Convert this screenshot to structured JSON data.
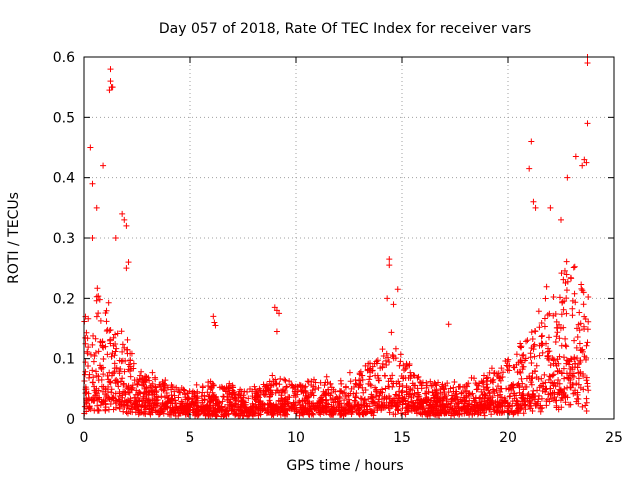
{
  "chart_data": {
    "type": "scatter",
    "title": "Day 057 of 2018, Rate Of TEC Index for receiver vars",
    "xlabel": "GPS time / hours",
    "ylabel": "ROTI / TECUs",
    "xlim": [
      0,
      25
    ],
    "ylim": [
      0,
      0.6
    ],
    "xticks": [
      0,
      5,
      10,
      15,
      20,
      25
    ],
    "xtick_labels": [
      "0",
      "5",
      "10",
      "15",
      "20",
      "25"
    ],
    "yticks": [
      0,
      0.1,
      0.2,
      0.3,
      0.4,
      0.5,
      0.6
    ],
    "ytick_labels": [
      "0",
      "0.1",
      "0.2",
      "0.3",
      "0.4",
      "0.5",
      "0.6"
    ],
    "grid": true,
    "marker": "+",
    "color": "#ff0000",
    "series": [
      {
        "name": "ROTI",
        "envelope": [
          {
            "t": 0.0,
            "base": 0.025,
            "spread": 0.16
          },
          {
            "t": 0.5,
            "base": 0.03,
            "spread": 0.2
          },
          {
            "t": 1.0,
            "base": 0.03,
            "spread": 0.18
          },
          {
            "t": 1.5,
            "base": 0.03,
            "spread": 0.14
          },
          {
            "t": 2.0,
            "base": 0.025,
            "spread": 0.12
          },
          {
            "t": 2.5,
            "base": 0.02,
            "spread": 0.07
          },
          {
            "t": 3.0,
            "base": 0.02,
            "spread": 0.06
          },
          {
            "t": 4.0,
            "base": 0.015,
            "spread": 0.045
          },
          {
            "t": 5.0,
            "base": 0.012,
            "spread": 0.04
          },
          {
            "t": 6.0,
            "base": 0.012,
            "spread": 0.05
          },
          {
            "t": 7.0,
            "base": 0.012,
            "spread": 0.045
          },
          {
            "t": 8.0,
            "base": 0.012,
            "spread": 0.045
          },
          {
            "t": 9.0,
            "base": 0.015,
            "spread": 0.06
          },
          {
            "t": 10.0,
            "base": 0.015,
            "spread": 0.05
          },
          {
            "t": 11.0,
            "base": 0.015,
            "spread": 0.05
          },
          {
            "t": 12.0,
            "base": 0.015,
            "spread": 0.055
          },
          {
            "t": 13.0,
            "base": 0.018,
            "spread": 0.06
          },
          {
            "t": 14.0,
            "base": 0.02,
            "spread": 0.1
          },
          {
            "t": 14.5,
            "base": 0.022,
            "spread": 0.12
          },
          {
            "t": 15.0,
            "base": 0.02,
            "spread": 0.09
          },
          {
            "t": 16.0,
            "base": 0.015,
            "spread": 0.05
          },
          {
            "t": 17.0,
            "base": 0.015,
            "spread": 0.045
          },
          {
            "t": 18.0,
            "base": 0.015,
            "spread": 0.05
          },
          {
            "t": 19.0,
            "base": 0.018,
            "spread": 0.06
          },
          {
            "t": 20.0,
            "base": 0.02,
            "spread": 0.08
          },
          {
            "t": 20.5,
            "base": 0.025,
            "spread": 0.1
          },
          {
            "t": 21.0,
            "base": 0.03,
            "spread": 0.12
          },
          {
            "t": 21.5,
            "base": 0.035,
            "spread": 0.16
          },
          {
            "t": 22.0,
            "base": 0.04,
            "spread": 0.2
          },
          {
            "t": 22.5,
            "base": 0.04,
            "spread": 0.22
          },
          {
            "t": 23.0,
            "base": 0.04,
            "spread": 0.24
          },
          {
            "t": 23.5,
            "base": 0.04,
            "spread": 0.22
          },
          {
            "t": 23.8,
            "base": 0.04,
            "spread": 0.18
          }
        ],
        "highlights": [
          [
            0.3,
            0.45
          ],
          [
            0.4,
            0.39
          ],
          [
            0.6,
            0.35
          ],
          [
            0.4,
            0.3
          ],
          [
            0.9,
            0.42
          ],
          [
            1.25,
            0.58
          ],
          [
            1.25,
            0.56
          ],
          [
            1.3,
            0.55
          ],
          [
            1.35,
            0.55
          ],
          [
            1.2,
            0.545
          ],
          [
            1.8,
            0.34
          ],
          [
            1.9,
            0.33
          ],
          [
            2.0,
            0.32
          ],
          [
            1.5,
            0.3
          ],
          [
            2.1,
            0.26
          ],
          [
            2.0,
            0.25
          ],
          [
            6.1,
            0.17
          ],
          [
            6.15,
            0.16
          ],
          [
            6.2,
            0.155
          ],
          [
            9.0,
            0.185
          ],
          [
            9.1,
            0.18
          ],
          [
            9.2,
            0.175
          ],
          [
            9.1,
            0.145
          ],
          [
            14.4,
            0.265
          ],
          [
            14.4,
            0.255
          ],
          [
            14.3,
            0.2
          ],
          [
            14.8,
            0.215
          ],
          [
            14.6,
            0.19
          ],
          [
            17.2,
            0.157
          ],
          [
            21.1,
            0.46
          ],
          [
            21.0,
            0.415
          ],
          [
            21.2,
            0.36
          ],
          [
            21.3,
            0.35
          ],
          [
            22.0,
            0.35
          ],
          [
            23.2,
            0.435
          ],
          [
            23.6,
            0.43
          ],
          [
            23.7,
            0.425
          ],
          [
            23.5,
            0.42
          ],
          [
            22.8,
            0.4
          ],
          [
            23.75,
            0.6
          ],
          [
            23.75,
            0.59
          ],
          [
            23.75,
            0.49
          ],
          [
            22.5,
            0.33
          ]
        ]
      }
    ]
  }
}
